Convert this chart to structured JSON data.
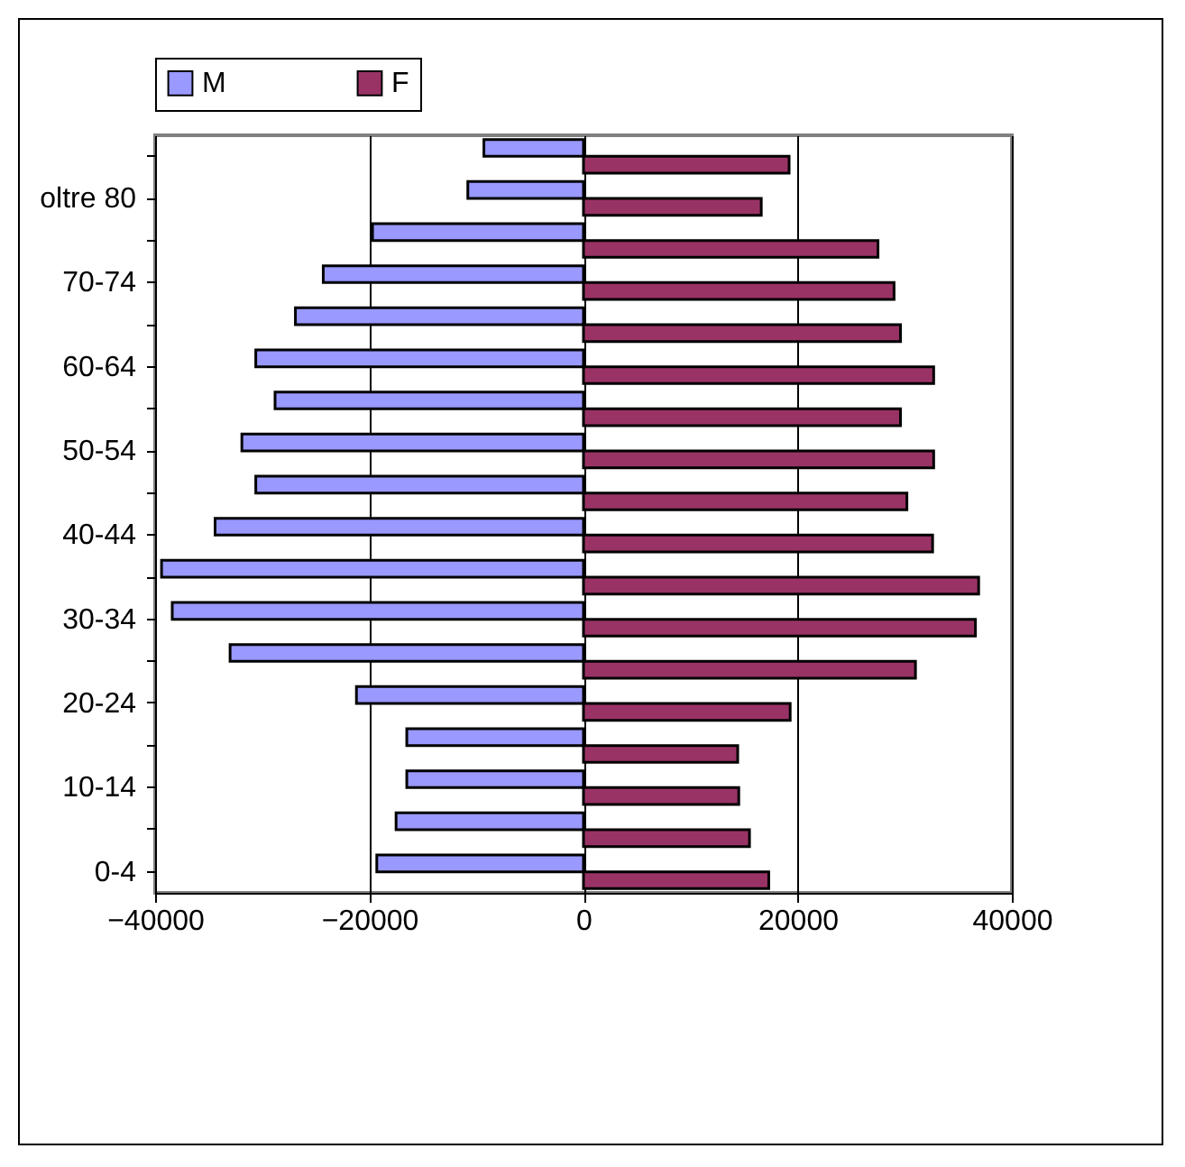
{
  "chart_data": {
    "type": "bar",
    "orientation": "horizontal",
    "categories": [
      null,
      "oltre 80",
      null,
      "70-74",
      null,
      "60-64",
      null,
      "50-54",
      null,
      "40-44",
      null,
      "30-34",
      null,
      "20-24",
      null,
      "10-14",
      null,
      "0-4"
    ],
    "series": [
      {
        "name": "M",
        "color": "#9999ff",
        "values": [
          -9300,
          -10800,
          -19700,
          -24300,
          -26900,
          -30600,
          -28800,
          -31900,
          -30600,
          -34400,
          -39400,
          -38400,
          -33000,
          -21200,
          -16500,
          -16500,
          -17500,
          -19300
        ]
      },
      {
        "name": "F",
        "color": "#993366",
        "values": [
          19200,
          16600,
          27500,
          29000,
          29600,
          32700,
          29600,
          32700,
          30200,
          32600,
          36900,
          36600,
          31000,
          19300,
          14400,
          14500,
          15500,
          17300
        ]
      }
    ],
    "xlim": [
      -40000,
      40000
    ],
    "xticks": [
      -40000,
      -20000,
      0,
      20000,
      40000
    ],
    "grid": "x",
    "legend": "top"
  }
}
